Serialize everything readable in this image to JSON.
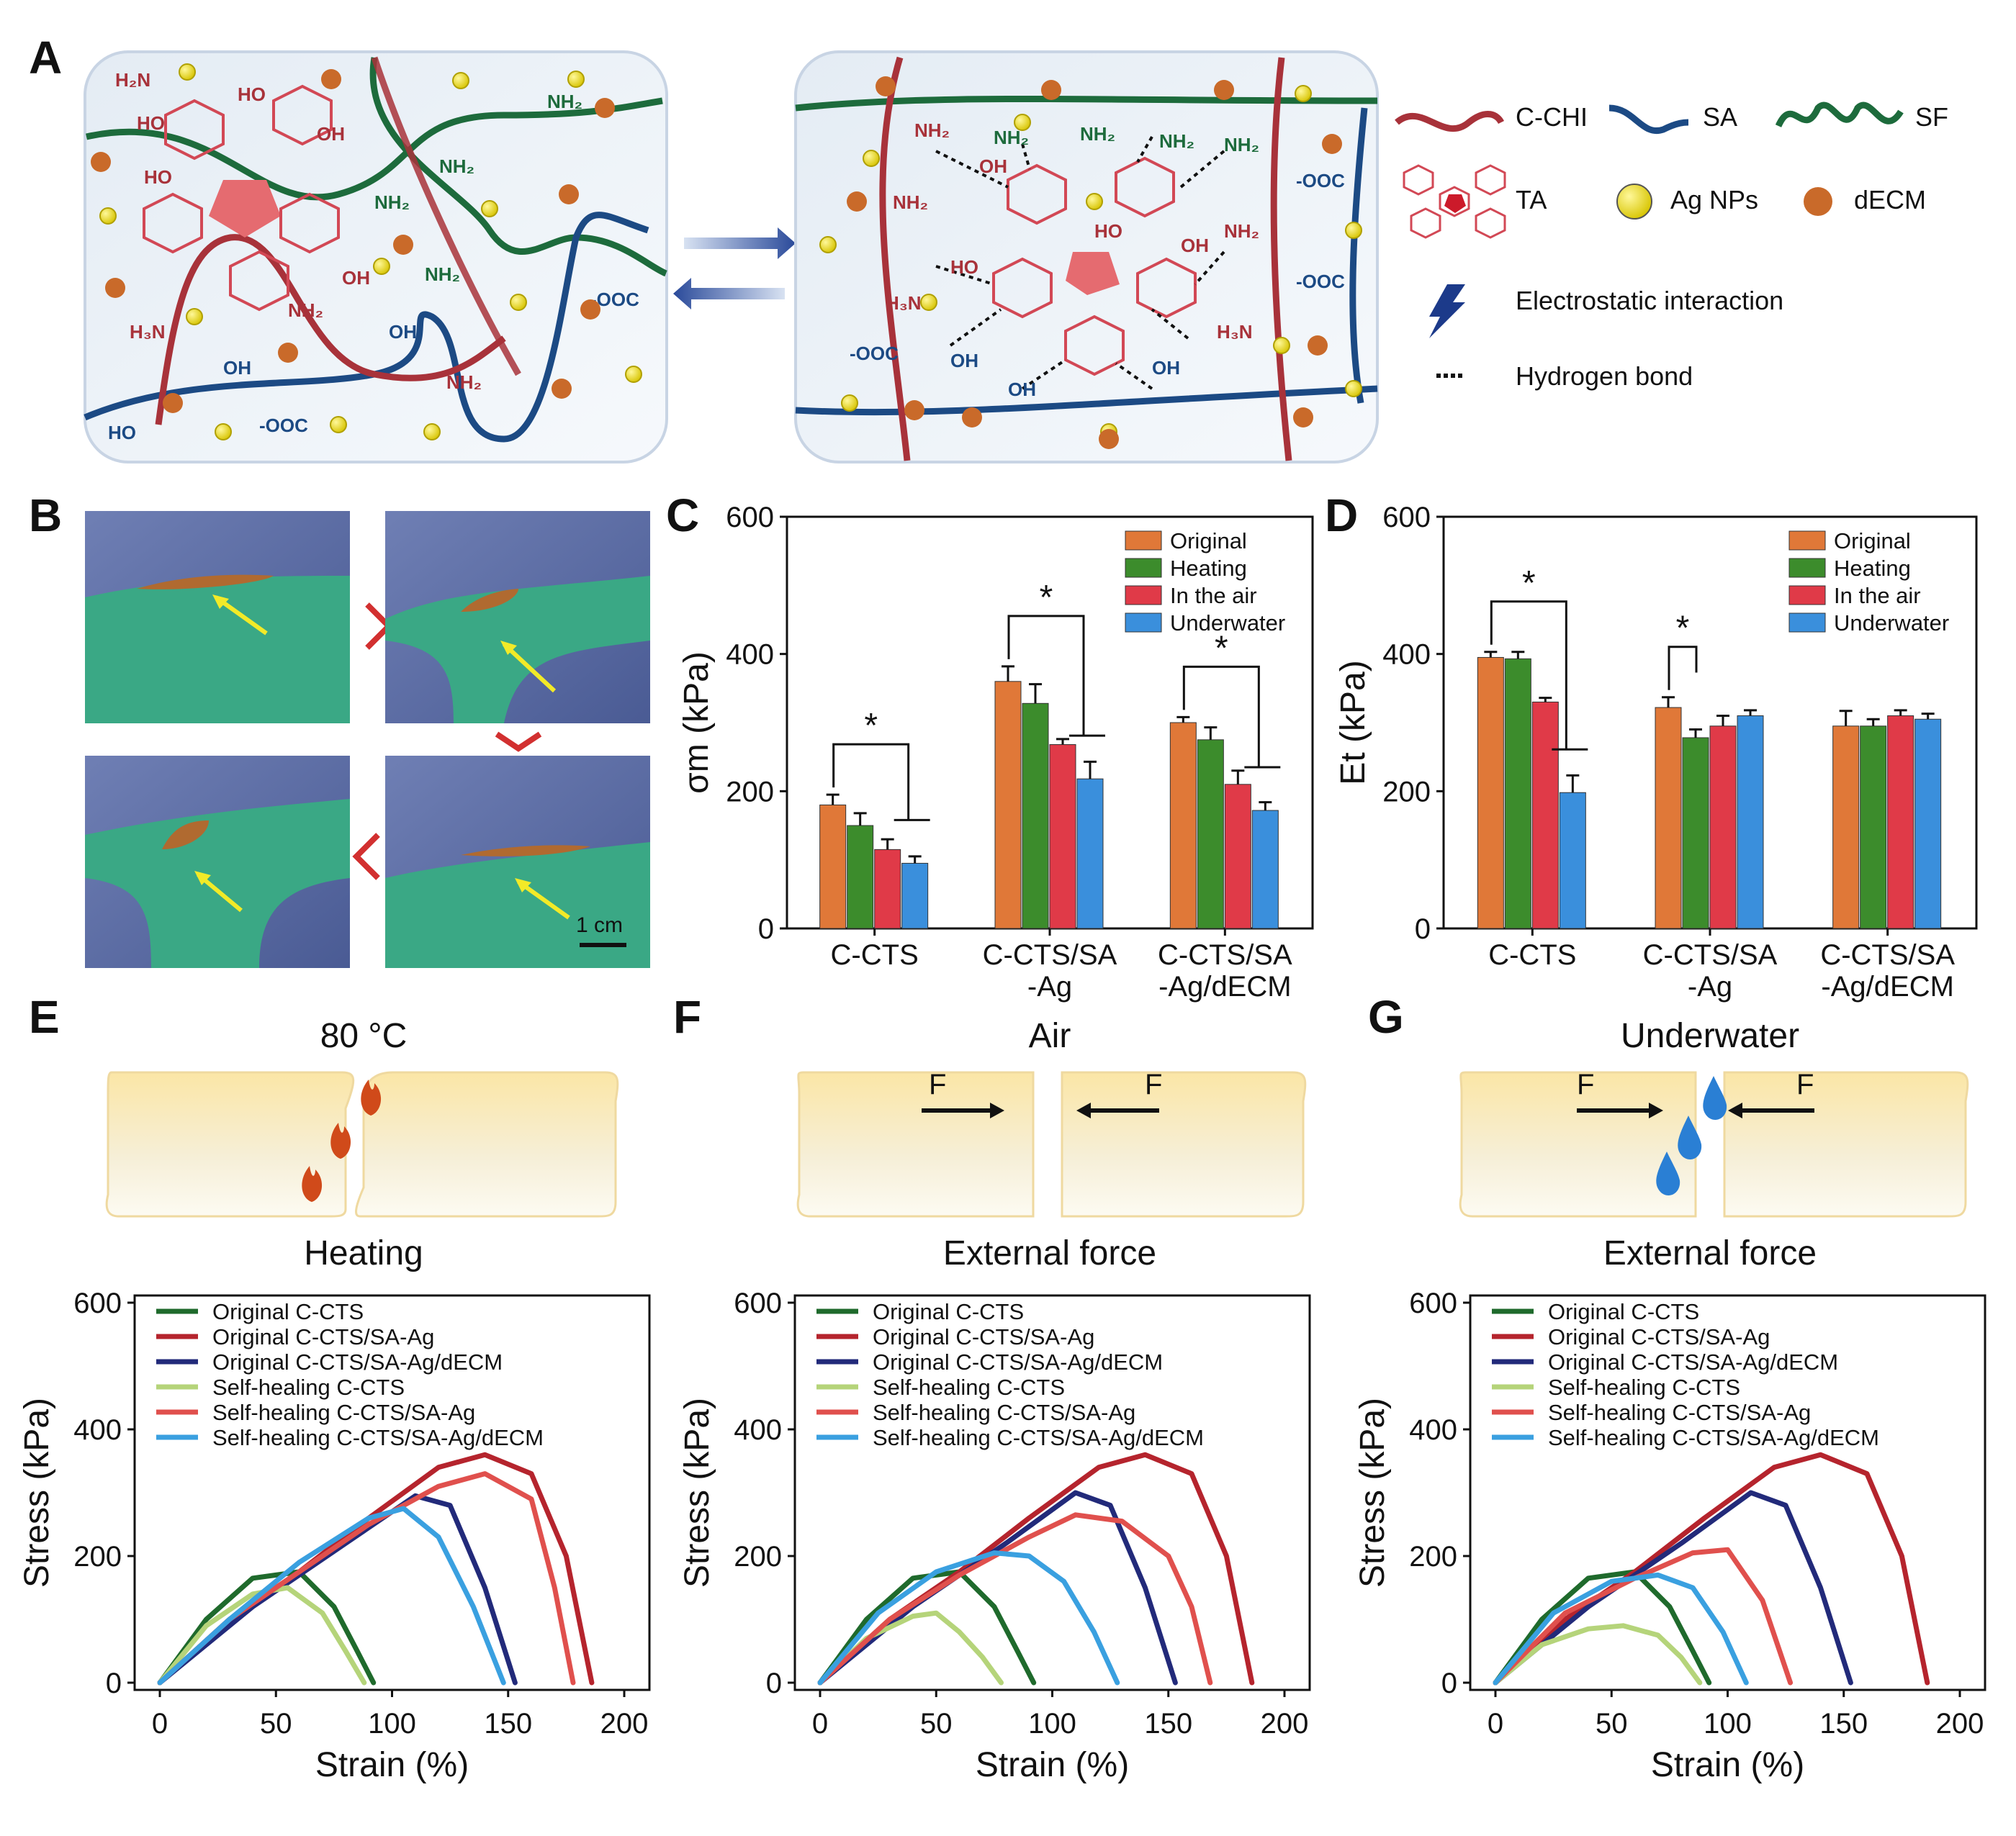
{
  "panels": {
    "A": "A",
    "B": "B",
    "C": "C",
    "D": "D",
    "E": "E",
    "F": "F",
    "G": "G"
  },
  "colors": {
    "orig": "#e07838",
    "heat": "#3c8c2c",
    "air": "#e03a48",
    "water": "#3a8fdc",
    "c_chi": "#a8323a",
    "sa": "#1c4a84",
    "sf": "#1d6b3c",
    "ta": "#d24855"
  },
  "schematic": {
    "legend": {
      "c_chi": "C-CHI",
      "sa": "SA",
      "sf": "SF",
      "ta": "TA",
      "ag": "Ag NPs",
      "decm": "dECM",
      "electrostatic": "Electrostatic interaction",
      "hbond": "Hydrogen bond"
    },
    "chem": {
      "nh2": "NH₂",
      "nh3": "H₃N",
      "ho": "HO",
      "oh": "OH",
      "coo": "-OOC",
      "cooh": "OH"
    }
  },
  "photo": {
    "scale_label": "1 cm"
  },
  "bar_legend": [
    "Original",
    "Heating",
    "In the air",
    "Underwater"
  ],
  "scenes": {
    "E": {
      "top": "80 °C",
      "bottom": "Heating"
    },
    "F": {
      "top": "Air",
      "bottom": "External force",
      "force": "F"
    },
    "G": {
      "top": "Underwater",
      "bottom": "External force",
      "force": "F"
    }
  },
  "chart_data": [
    {
      "id": "C",
      "type": "bar",
      "ylabel": "σm (kPa)",
      "ylim": [
        0,
        600
      ],
      "yticks": [
        0,
        200,
        400,
        600
      ],
      "categories": [
        "C-CTS",
        "C-CTS/SA\n-Ag",
        "C-CTS/SA\n-Ag/dECM"
      ],
      "series": [
        {
          "name": "Original",
          "values": [
            180,
            360,
            300
          ],
          "err": [
            15,
            22,
            8
          ]
        },
        {
          "name": "Heating",
          "values": [
            150,
            328,
            275
          ],
          "err": [
            18,
            28,
            18
          ]
        },
        {
          "name": "In the air",
          "values": [
            115,
            268,
            210
          ],
          "err": [
            15,
            8,
            20
          ]
        },
        {
          "name": "Underwater",
          "values": [
            95,
            218,
            172
          ],
          "err": [
            10,
            25,
            12
          ]
        }
      ],
      "significance": [
        {
          "group": 0,
          "label": "*"
        },
        {
          "group": 1,
          "label": "*"
        },
        {
          "group": 2,
          "label": "*"
        }
      ]
    },
    {
      "id": "D",
      "type": "bar",
      "ylabel": "Et (kPa)",
      "ylim": [
        0,
        600
      ],
      "yticks": [
        0,
        200,
        400,
        600
      ],
      "categories": [
        "C-CTS",
        "C-CTS/SA\n-Ag",
        "C-CTS/SA\n-Ag/dECM"
      ],
      "series": [
        {
          "name": "Original",
          "values": [
            395,
            322,
            295
          ],
          "err": [
            8,
            15,
            22
          ]
        },
        {
          "name": "Heating",
          "values": [
            393,
            278,
            295
          ],
          "err": [
            10,
            12,
            10
          ]
        },
        {
          "name": "In the air",
          "values": [
            330,
            295,
            310
          ],
          "err": [
            6,
            15,
            8
          ]
        },
        {
          "name": "Underwater",
          "values": [
            198,
            310,
            305
          ],
          "err": [
            25,
            8,
            8
          ]
        }
      ],
      "significance": [
        {
          "group": 0,
          "label": "*"
        },
        {
          "group": 1,
          "label": "*"
        }
      ]
    },
    {
      "id": "E",
      "type": "line",
      "xlabel": "Strain (%)",
      "ylabel": "Stress (kPa)",
      "xlim": [
        0,
        200
      ],
      "ylim": [
        0,
        600
      ],
      "xticks": [
        0,
        50,
        100,
        150,
        200
      ],
      "yticks": [
        0,
        200,
        400,
        600
      ],
      "series": [
        {
          "name": "Original C-CTS",
          "color": "#1f6a2c",
          "x": [
            0,
            20,
            40,
            60,
            75,
            85,
            92
          ],
          "y": [
            0,
            100,
            165,
            175,
            120,
            50,
            0
          ]
        },
        {
          "name": "Original C-CTS/SA-Ag",
          "color": "#b5242d",
          "x": [
            0,
            30,
            60,
            90,
            120,
            140,
            160,
            175,
            186
          ],
          "y": [
            0,
            100,
            175,
            260,
            340,
            360,
            330,
            200,
            0
          ]
        },
        {
          "name": "Original C-CTS/SA-Ag/dECM",
          "color": "#222a7a",
          "x": [
            0,
            40,
            80,
            110,
            125,
            140,
            153
          ],
          "y": [
            0,
            120,
            220,
            295,
            280,
            150,
            0
          ]
        },
        {
          "name": "Self-healing C-CTS",
          "color": "#b5d47a",
          "x": [
            0,
            20,
            40,
            55,
            70,
            80,
            88
          ],
          "y": [
            0,
            90,
            140,
            150,
            110,
            50,
            0
          ]
        },
        {
          "name": "Self-healing C-CTS/SA-Ag",
          "color": "#e0504d",
          "x": [
            0,
            30,
            60,
            90,
            120,
            140,
            160,
            170,
            178
          ],
          "y": [
            0,
            100,
            175,
            250,
            310,
            330,
            290,
            150,
            0
          ]
        },
        {
          "name": "Self-healing C-CTS/SA-Ag/dECM",
          "color": "#3aa0e0",
          "x": [
            0,
            30,
            60,
            90,
            105,
            120,
            135,
            148
          ],
          "y": [
            0,
            100,
            190,
            260,
            275,
            230,
            120,
            0
          ]
        }
      ]
    },
    {
      "id": "F",
      "type": "line",
      "xlabel": "Strain (%)",
      "ylabel": "Stress (kPa)",
      "xlim": [
        0,
        200
      ],
      "ylim": [
        0,
        600
      ],
      "xticks": [
        0,
        50,
        100,
        150,
        200
      ],
      "yticks": [
        0,
        200,
        400,
        600
      ],
      "series": [
        {
          "name": "Original C-CTS",
          "color": "#1f6a2c",
          "x": [
            0,
            20,
            40,
            60,
            75,
            85,
            92
          ],
          "y": [
            0,
            100,
            165,
            175,
            120,
            50,
            0
          ]
        },
        {
          "name": "Original C-CTS/SA-Ag",
          "color": "#b5242d",
          "x": [
            0,
            30,
            60,
            90,
            120,
            140,
            160,
            175,
            186
          ],
          "y": [
            0,
            100,
            175,
            260,
            340,
            360,
            330,
            200,
            0
          ]
        },
        {
          "name": "Original C-CTS/SA-Ag/dECM",
          "color": "#222a7a",
          "x": [
            0,
            40,
            80,
            110,
            125,
            140,
            153
          ],
          "y": [
            0,
            120,
            220,
            300,
            280,
            150,
            0
          ]
        },
        {
          "name": "Self-healing C-CTS",
          "color": "#b5d47a",
          "x": [
            0,
            20,
            40,
            50,
            60,
            70,
            78
          ],
          "y": [
            0,
            70,
            105,
            110,
            80,
            40,
            0
          ]
        },
        {
          "name": "Self-healing C-CTS/SA-Ag",
          "color": "#e0504d",
          "x": [
            0,
            30,
            60,
            90,
            110,
            130,
            150,
            160,
            168
          ],
          "y": [
            0,
            100,
            170,
            230,
            265,
            255,
            200,
            120,
            0
          ]
        },
        {
          "name": "Self-healing C-CTS/SA-Ag/dECM",
          "color": "#3aa0e0",
          "x": [
            0,
            25,
            50,
            75,
            90,
            105,
            118,
            128
          ],
          "y": [
            0,
            110,
            175,
            205,
            200,
            160,
            80,
            0
          ]
        }
      ]
    },
    {
      "id": "G",
      "type": "line",
      "xlabel": "Strain (%)",
      "ylabel": "Stress (kPa)",
      "xlim": [
        0,
        200
      ],
      "ylim": [
        0,
        600
      ],
      "xticks": [
        0,
        50,
        100,
        150,
        200
      ],
      "yticks": [
        0,
        200,
        400,
        600
      ],
      "series": [
        {
          "name": "Original C-CTS",
          "color": "#1f6a2c",
          "x": [
            0,
            20,
            40,
            60,
            75,
            85,
            92
          ],
          "y": [
            0,
            100,
            165,
            175,
            120,
            50,
            0
          ]
        },
        {
          "name": "Original C-CTS/SA-Ag",
          "color": "#b5242d",
          "x": [
            0,
            30,
            60,
            90,
            120,
            140,
            160,
            175,
            186
          ],
          "y": [
            0,
            100,
            175,
            260,
            340,
            360,
            330,
            200,
            0
          ]
        },
        {
          "name": "Original C-CTS/SA-Ag/dECM",
          "color": "#222a7a",
          "x": [
            0,
            40,
            80,
            110,
            125,
            140,
            153
          ],
          "y": [
            0,
            120,
            220,
            300,
            280,
            150,
            0
          ]
        },
        {
          "name": "Self-healing C-CTS",
          "color": "#b5d47a",
          "x": [
            0,
            20,
            40,
            55,
            70,
            80,
            88
          ],
          "y": [
            0,
            60,
            85,
            90,
            75,
            40,
            0
          ]
        },
        {
          "name": "Self-healing C-CTS/SA-Ag",
          "color": "#e0504d",
          "x": [
            0,
            30,
            60,
            85,
            100,
            115,
            127
          ],
          "y": [
            0,
            110,
            165,
            205,
            210,
            130,
            0
          ]
        },
        {
          "name": "Self-healing C-CTS/SA-Ag/dECM",
          "color": "#3aa0e0",
          "x": [
            0,
            25,
            50,
            70,
            85,
            98,
            108
          ],
          "y": [
            0,
            110,
            160,
            170,
            150,
            80,
            0
          ]
        }
      ]
    }
  ]
}
